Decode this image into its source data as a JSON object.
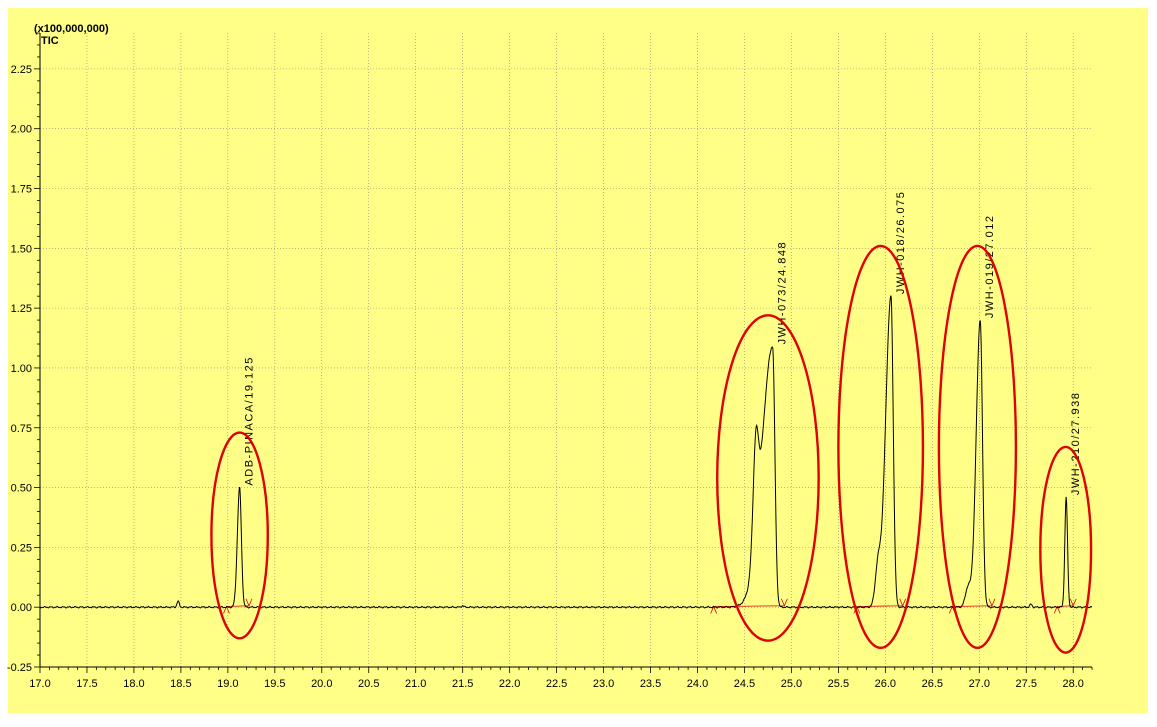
{
  "chart_data": {
    "type": "line",
    "y_multiplier_label": "(x100,000,000)",
    "series_label": "TIC",
    "xlim": [
      17.0,
      28.2
    ],
    "ylim": [
      -0.25,
      2.4
    ],
    "x_ticks": [
      "17.0",
      "17.5",
      "18.0",
      "18.5",
      "19.0",
      "19.5",
      "20.0",
      "20.5",
      "21.0",
      "21.5",
      "22.0",
      "22.5",
      "23.0",
      "23.5",
      "24.0",
      "24.5",
      "25.0",
      "25.5",
      "26.0",
      "26.5",
      "27.0",
      "27.5",
      "28.0"
    ],
    "y_ticks": [
      "-0.25",
      "0.00",
      "0.25",
      "0.50",
      "0.75",
      "1.00",
      "1.25",
      "1.50",
      "1.75",
      "2.00",
      "2.25"
    ],
    "grid": true,
    "background_color": "#ffff88",
    "trace_color": "#000000",
    "annotation_color": "#e00000",
    "baseline": 0.0,
    "minor_bumps": [
      {
        "rt": 18.47,
        "height": 0.025
      },
      {
        "rt": 21.5,
        "height": 0.006
      },
      {
        "rt": 27.55,
        "height": 0.012
      }
    ],
    "peaks": [
      {
        "label": "ADB-PINACA/19.125",
        "rt": 19.125,
        "height": 0.5,
        "width_left": 0.05,
        "width_right": 0.04,
        "shoulder": null
      },
      {
        "label": "JWH-073/24.848",
        "rt": 24.8,
        "height": 1.09,
        "width_left": 0.24,
        "width_right": 0.05,
        "shoulder": {
          "rt": 24.62,
          "height": 0.42
        }
      },
      {
        "label": "JWH-018/26.075",
        "rt": 26.06,
        "height": 1.3,
        "width_left": 0.12,
        "width_right": 0.05,
        "shoulder": {
          "rt": 25.92,
          "height": 0.15
        }
      },
      {
        "label": "JWH-019/27.012",
        "rt": 27.01,
        "height": 1.2,
        "width_left": 0.09,
        "width_right": 0.05,
        "shoulder": {
          "rt": 26.88,
          "height": 0.08
        }
      },
      {
        "label": "JWH-210/27.938",
        "rt": 27.925,
        "height": 0.46,
        "width_left": 0.03,
        "width_right": 0.03,
        "shoulder": null
      }
    ],
    "highlight_ellipses": [
      {
        "cx": 19.125,
        "cy": 0.3,
        "rx": 0.3,
        "ry": 0.43
      },
      {
        "cx": 24.75,
        "cy": 0.54,
        "rx": 0.54,
        "ry": 0.68
      },
      {
        "cx": 25.95,
        "cy": 0.67,
        "rx": 0.45,
        "ry": 0.84
      },
      {
        "cx": 26.98,
        "cy": 0.67,
        "rx": 0.41,
        "ry": 0.84
      },
      {
        "cx": 27.92,
        "cy": 0.24,
        "rx": 0.27,
        "ry": 0.43
      }
    ]
  }
}
